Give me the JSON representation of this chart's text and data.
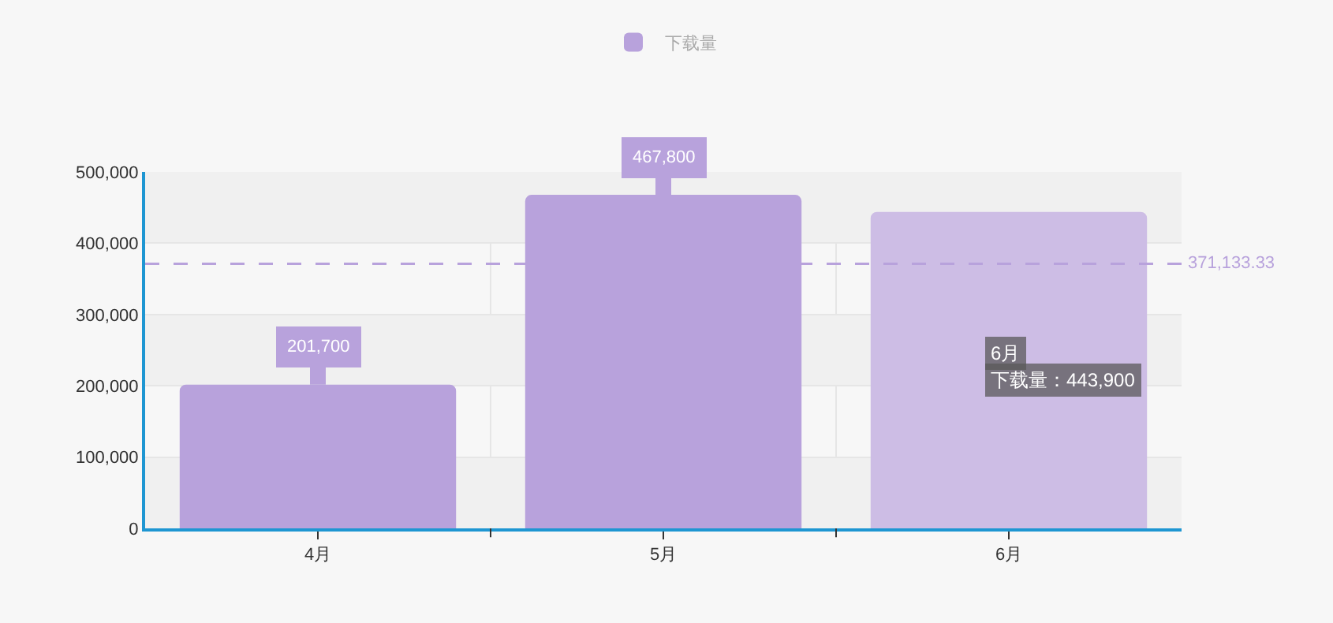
{
  "chart_data": {
    "type": "bar",
    "categories": [
      "4月",
      "5月",
      "6月"
    ],
    "series": [
      {
        "name": "下载量",
        "color": "#b8a2dc",
        "colors": [
          "#b8a2dc",
          "#b8a2dc",
          "#cdbde5"
        ],
        "values": [
          201700,
          467800,
          443900
        ]
      }
    ],
    "ylim": [
      0,
      500000
    ],
    "yticks": [
      0,
      {
        "value": 100000,
        "label": "100,000"
      },
      {
        "value": 200000,
        "label": "200,000"
      },
      {
        "value": 300000,
        "label": "300,000"
      },
      {
        "value": 400000,
        "label": "400,000"
      },
      {
        "value": 500000,
        "label": "500,000"
      }
    ],
    "grid": true,
    "legend": "top",
    "ref_lines": [
      {
        "axis": "y",
        "value": 371133.33,
        "label": "371,133.33",
        "color": "#b8a2dc",
        "line_style": "dashed"
      }
    ],
    "annotations": [
      {
        "text": "201,700",
        "x": "4月",
        "y": 201700
      },
      {
        "text": "467,800",
        "x": "5月",
        "y": 467800
      },
      "6月",
      "下载量：443,900"
    ]
  }
}
